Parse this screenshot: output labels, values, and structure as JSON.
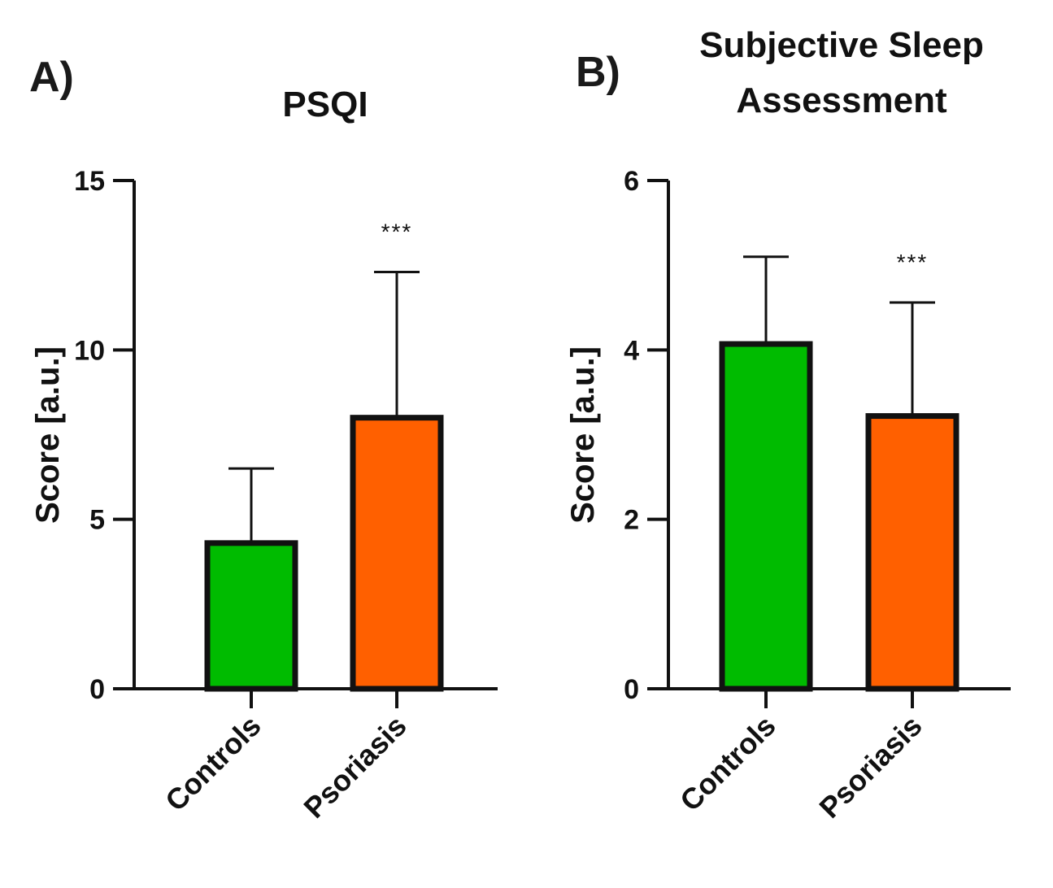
{
  "colors": {
    "controls": "#00BB00",
    "psoriasis": "#FF6000",
    "axis": "#111111",
    "panel_label_shadow": "#F5A000"
  },
  "chart_data": [
    {
      "type": "bar",
      "panel_label": "A)",
      "title": [
        "PSQI"
      ],
      "ylabel": "Score [a.u.]",
      "xlabel": "",
      "ylim": [
        0,
        15
      ],
      "yticks": [
        0,
        5,
        10,
        15
      ],
      "categories": [
        "Controls",
        "Psoriasis"
      ],
      "values": [
        4.3,
        8.0
      ],
      "error_upper": [
        6.5,
        12.3
      ],
      "significance": [
        "",
        "***"
      ]
    },
    {
      "type": "bar",
      "panel_label": "B)",
      "title": [
        "Subjective Sleep",
        "Assessment"
      ],
      "ylabel": "Score [a.u.]",
      "xlabel": "",
      "ylim": [
        0,
        6
      ],
      "yticks": [
        0,
        2,
        4,
        6
      ],
      "categories": [
        "Controls",
        "Psoriasis"
      ],
      "values": [
        4.07,
        3.22
      ],
      "error_upper": [
        5.1,
        4.56
      ],
      "significance": [
        "",
        "***"
      ]
    }
  ]
}
